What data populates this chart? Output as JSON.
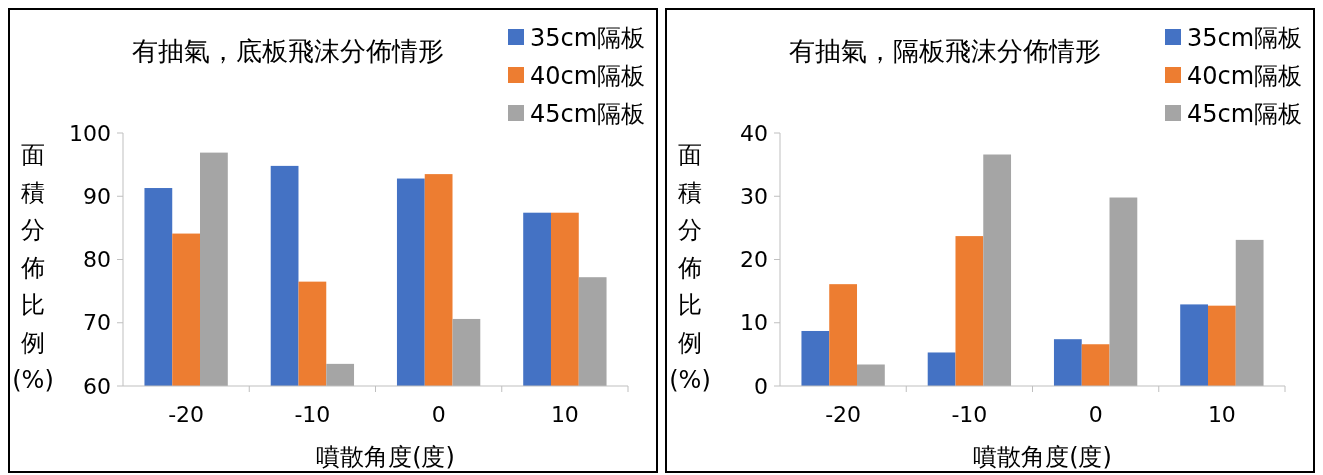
{
  "chart_data": [
    {
      "type": "bar",
      "title": "有抽氣，底板飛沫分佈情形",
      "xlabel": "噴散角度(度)",
      "ylabel": "面積分佈比例(%)",
      "categories": [
        "-20",
        "-10",
        "0",
        "10"
      ],
      "ylim": [
        60,
        100
      ],
      "yticks": [
        60,
        70,
        80,
        90,
        100
      ],
      "legend": "top right",
      "series": [
        {
          "name": "35cm隔板",
          "color": "#4472c4",
          "values": [
            91.3,
            94.8,
            92.8,
            87.4
          ]
        },
        {
          "name": "40cm隔板",
          "color": "#ed7d31",
          "values": [
            84.1,
            76.5,
            93.5,
            87.4
          ]
        },
        {
          "name": "45cm隔板",
          "color": "#a5a5a5",
          "values": [
            96.9,
            63.5,
            70.6,
            77.2
          ]
        }
      ]
    },
    {
      "type": "bar",
      "title": "有抽氣，隔板飛沫分佈情形",
      "xlabel": "噴散角度(度)",
      "ylabel": "面積分佈比例(%)",
      "categories": [
        "-20",
        "-10",
        "0",
        "10"
      ],
      "ylim": [
        0,
        40
      ],
      "yticks": [
        0,
        10,
        20,
        30,
        40
      ],
      "legend": "top right",
      "series": [
        {
          "name": "35cm隔板",
          "color": "#4472c4",
          "values": [
            8.7,
            5.3,
            7.4,
            12.9
          ]
        },
        {
          "name": "40cm隔板",
          "color": "#ed7d31",
          "values": [
            16.1,
            23.7,
            6.6,
            12.7
          ]
        },
        {
          "name": "45cm隔板",
          "color": "#a5a5a5",
          "values": [
            3.4,
            36.6,
            29.8,
            23.1
          ]
        }
      ]
    }
  ]
}
